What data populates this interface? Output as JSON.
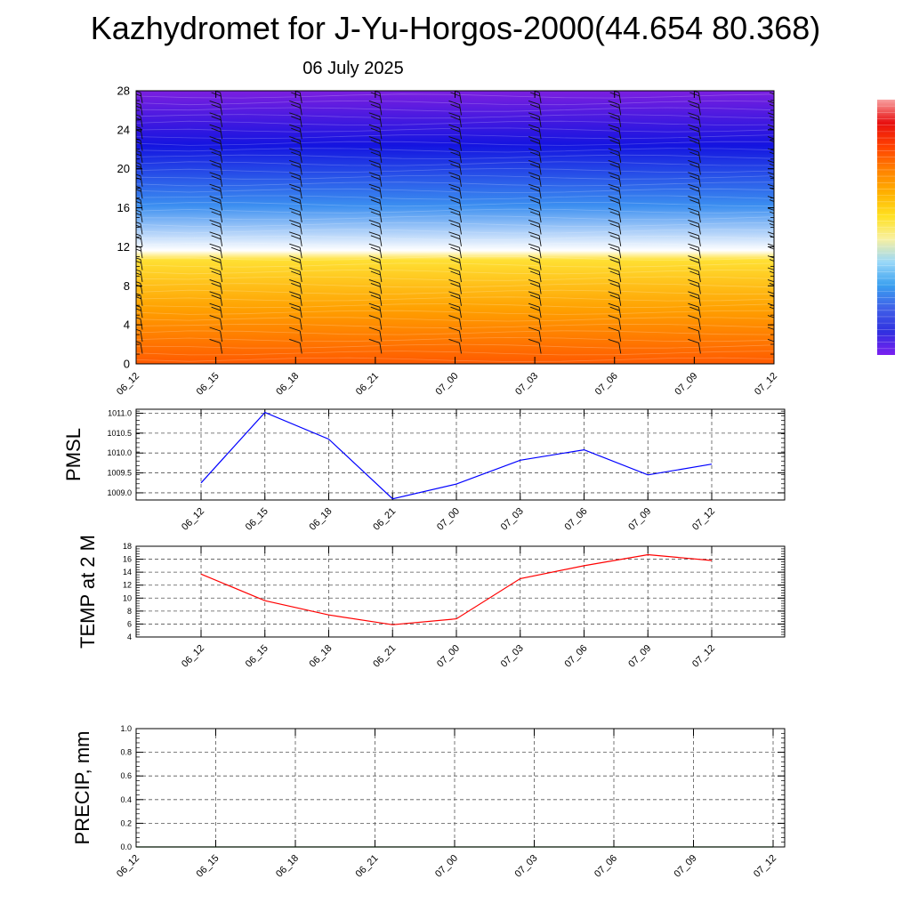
{
  "title": "Kazhydromet for J-Yu-Horgos-2000(44.654 80.368)",
  "subtitle": "06 July 2025",
  "chart_data": [
    {
      "type": "heatmap",
      "description_units": "temperature contour fill with wind barbs, height vs time",
      "x_ticks": [
        "06_12",
        "06_15",
        "06_18",
        "06_21",
        "07_00",
        "07_03",
        "07_06",
        "07_09",
        "07_12"
      ],
      "y_ticks": [
        "0",
        "4",
        "8",
        "12",
        "16",
        "20",
        "24",
        "28"
      ],
      "ylim": [
        0,
        28
      ],
      "color_scale": [
        "#7b1fe0",
        "#1414e0",
        "#3b8ef0",
        "#ffffff",
        "#ffe033",
        "#ffa000",
        "#ff5a00"
      ],
      "colorbar": [
        "#7a20f0",
        "#3030e0",
        "#4060e8",
        "#3aa0f0",
        "#9ad8f8",
        "#f8f0a0",
        "#ffe020",
        "#ffb000",
        "#ff8000",
        "#ff4000",
        "#e81010",
        "#f8a0a0"
      ]
    },
    {
      "type": "line",
      "ylabel": "PMSL",
      "x": [
        "06_12",
        "06_15",
        "06_18",
        "06_21",
        "07_00",
        "07_03",
        "07_06",
        "07_09",
        "07_12"
      ],
      "y_ticks": [
        "1009.0",
        "1009.5",
        "1010.0",
        "1010.5",
        "1011.0"
      ],
      "ylim": [
        1008.82,
        1011.1
      ],
      "series": [
        {
          "values": [
            1009.25,
            1011.02,
            1010.35,
            1008.85,
            1009.22,
            1009.82,
            1010.08,
            1009.45,
            1009.72
          ],
          "color": "#0000ff"
        }
      ],
      "grid": true
    },
    {
      "type": "line",
      "ylabel": "TEMP at 2 M",
      "x": [
        "06_12",
        "06_15",
        "06_18",
        "06_21",
        "07_00",
        "07_03",
        "07_06",
        "07_09",
        "07_12"
      ],
      "y_ticks": [
        "4",
        "6",
        "8",
        "10",
        "12",
        "14",
        "16",
        "18"
      ],
      "ylim": [
        4,
        18
      ],
      "series": [
        {
          "values": [
            13.7,
            9.6,
            7.4,
            5.9,
            6.8,
            13.0,
            15.0,
            16.7,
            15.8
          ],
          "color": "#ff0000"
        }
      ],
      "grid": true
    },
    {
      "type": "line",
      "ylabel": "PRECIP, mm",
      "x_ticks": [
        "06_12",
        "06_15",
        "06_18",
        "06_21",
        "07_00",
        "07_03",
        "07_06",
        "07_09",
        "07_12"
      ],
      "y_ticks": [
        "0.0",
        "0.2",
        "0.4",
        "0.6",
        "0.8",
        "1.0"
      ],
      "ylim": [
        0,
        1
      ],
      "series": [
        {
          "values": [
            0,
            0,
            0,
            0,
            0,
            0,
            0,
            0,
            0
          ],
          "color": "#006400"
        }
      ],
      "grid": true
    }
  ]
}
